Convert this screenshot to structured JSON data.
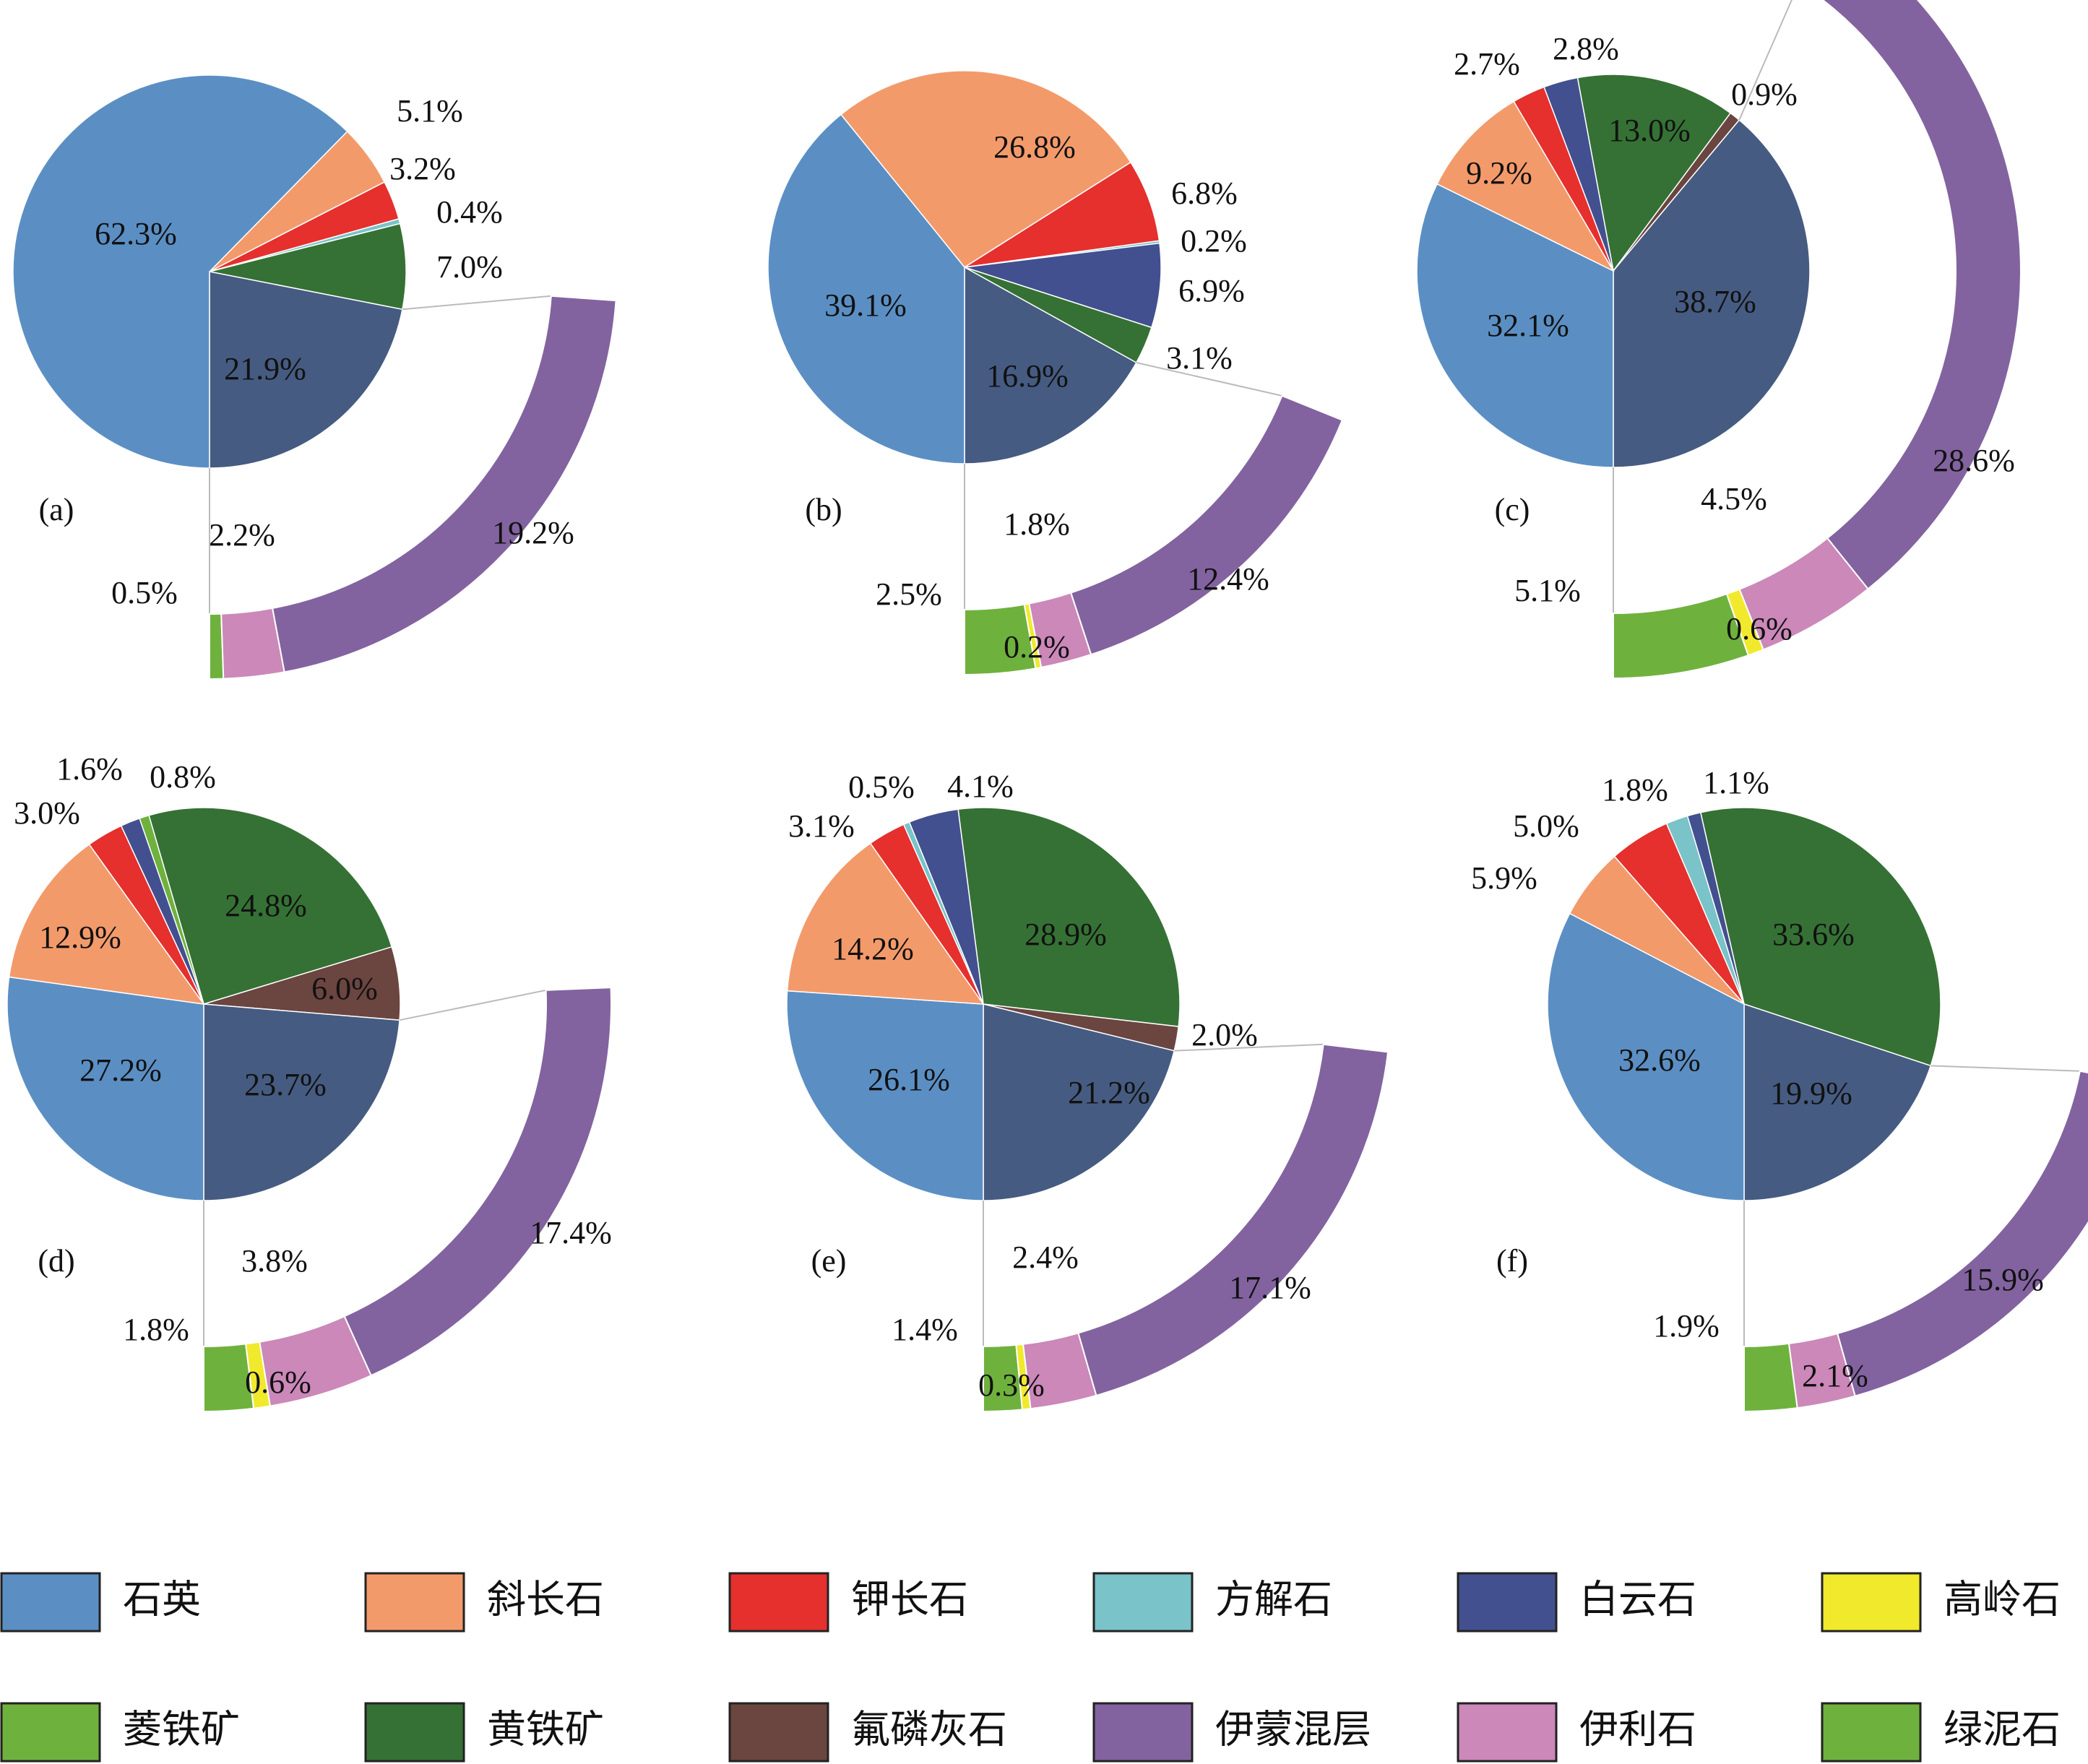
{
  "colors": {
    "石英": "#5b8fc4",
    "斜长石": "#f39a6b",
    "钾长石": "#e5302e",
    "方解石": "#79c3c9",
    "白云石": "#42508f",
    "高岭石": "#f1e92c",
    "菱铁矿": "#6fb13d",
    "黄铁矿": "#357134",
    "氟磷灰石": "#6b4540",
    "伊蒙混层": "#82639f",
    "伊利石": "#cb88b9",
    "绿泥石": "#6fb13d",
    "黏土矿物": "#465b81"
  },
  "legend": {
    "items": [
      "石英",
      "斜长石",
      "钾长石",
      "方解石",
      "白云石",
      "高岭石",
      "菱铁矿",
      "黄铁矿",
      "氟磷灰石",
      "伊蒙混层",
      "伊利石",
      "绿泥石"
    ]
  },
  "chart_data": [
    {
      "type": "pie",
      "panel_label": "(a)",
      "slices": [
        {
          "name": "斜长石",
          "value": 5.1,
          "label": "5.1%"
        },
        {
          "name": "钾长石",
          "value": 3.2,
          "label": "3.2%"
        },
        {
          "name": "方解石",
          "value": 0.4,
          "label": "0.4%"
        },
        {
          "name": "黄铁矿",
          "value": 7.0,
          "label": "7.0%"
        },
        {
          "name": "黏土矿物",
          "value": 21.9,
          "label": "21.9%"
        },
        {
          "name": "石英",
          "value": 62.3,
          "label": "62.3%"
        }
      ],
      "clay_breakdown": [
        {
          "name": "绿泥石",
          "value": 0.5,
          "label": "0.5%"
        },
        {
          "name": "伊利石",
          "value": 2.2,
          "label": "2.2%"
        },
        {
          "name": "伊蒙混层",
          "value": 19.2,
          "label": "19.2%"
        }
      ]
    },
    {
      "type": "pie",
      "panel_label": "(b)",
      "slices": [
        {
          "name": "斜长石",
          "value": 26.8,
          "label": "26.8%"
        },
        {
          "name": "钾长石",
          "value": 6.8,
          "label": "6.8%"
        },
        {
          "name": "方解石",
          "value": 0.2,
          "label": "0.2%"
        },
        {
          "name": "白云石",
          "value": 6.9,
          "label": "6.9%"
        },
        {
          "name": "黄铁矿",
          "value": 3.1,
          "label": "3.1%"
        },
        {
          "name": "黏土矿物",
          "value": 16.9,
          "label": "16.9%"
        },
        {
          "name": "石英",
          "value": 39.1,
          "label": "39.1%"
        }
      ],
      "clay_breakdown": [
        {
          "name": "绿泥石",
          "value": 2.5,
          "label": "2.5%"
        },
        {
          "name": "高岭石",
          "value": 0.2,
          "label": "0.2%"
        },
        {
          "name": "伊利石",
          "value": 1.8,
          "label": "1.8%"
        },
        {
          "name": "伊蒙混层",
          "value": 12.4,
          "label": "12.4%"
        }
      ]
    },
    {
      "type": "pie",
      "panel_label": "(c)",
      "slices": [
        {
          "name": "黄铁矿",
          "value": 13.0,
          "label": "13.0%"
        },
        {
          "name": "氟磷灰石",
          "value": 0.9,
          "label": "0.9%"
        },
        {
          "name": "黏土矿物",
          "value": 38.7,
          "label": "38.7%"
        },
        {
          "name": "石英",
          "value": 32.1,
          "label": "32.1%"
        },
        {
          "name": "斜长石",
          "value": 9.2,
          "label": "9.2%"
        },
        {
          "name": "钾长石",
          "value": 2.7,
          "label": "2.7%"
        },
        {
          "name": "白云石",
          "value": 2.8,
          "label": "2.8%"
        }
      ],
      "clay_breakdown": [
        {
          "name": "绿泥石",
          "value": 5.1,
          "label": "5.1%"
        },
        {
          "name": "高岭石",
          "value": 0.6,
          "label": "0.6%"
        },
        {
          "name": "伊利石",
          "value": 4.5,
          "label": "4.5%"
        },
        {
          "name": "伊蒙混层",
          "value": 28.6,
          "label": "28.6%"
        }
      ]
    },
    {
      "type": "pie",
      "panel_label": "(d)",
      "slices": [
        {
          "name": "黄铁矿",
          "value": 24.8,
          "label": "24.8%"
        },
        {
          "name": "氟磷灰石",
          "value": 6.0,
          "label": "6.0%"
        },
        {
          "name": "黏土矿物",
          "value": 23.7,
          "label": "23.7%"
        },
        {
          "name": "石英",
          "value": 27.2,
          "label": "27.2%"
        },
        {
          "name": "斜长石",
          "value": 12.9,
          "label": "12.9%"
        },
        {
          "name": "钾长石",
          "value": 3.0,
          "label": "3.0%"
        },
        {
          "name": "白云石",
          "value": 1.6,
          "label": "1.6%"
        },
        {
          "name": "菱铁矿",
          "value": 0.8,
          "label": "0.8%"
        }
      ],
      "clay_breakdown": [
        {
          "name": "绿泥石",
          "value": 1.8,
          "label": "1.8%"
        },
        {
          "name": "高岭石",
          "value": 0.6,
          "label": "0.6%"
        },
        {
          "name": "伊利石",
          "value": 3.8,
          "label": "3.8%"
        },
        {
          "name": "伊蒙混层",
          "value": 17.4,
          "label": "17.4%"
        }
      ]
    },
    {
      "type": "pie",
      "panel_label": "(e)",
      "slices": [
        {
          "name": "黄铁矿",
          "value": 28.9,
          "label": "28.9%"
        },
        {
          "name": "氟磷灰石",
          "value": 2.0,
          "label": "2.0%"
        },
        {
          "name": "黏土矿物",
          "value": 21.2,
          "label": "21.2%"
        },
        {
          "name": "石英",
          "value": 26.1,
          "label": "26.1%"
        },
        {
          "name": "斜长石",
          "value": 14.2,
          "label": "14.2%"
        },
        {
          "name": "钾长石",
          "value": 3.1,
          "label": "3.1%"
        },
        {
          "name": "方解石",
          "value": 0.5,
          "label": "0.5%"
        },
        {
          "name": "白云石",
          "value": 4.1,
          "label": "4.1%"
        }
      ],
      "clay_breakdown": [
        {
          "name": "绿泥石",
          "value": 1.4,
          "label": "1.4%"
        },
        {
          "name": "高岭石",
          "value": 0.3,
          "label": "0.3%"
        },
        {
          "name": "伊利石",
          "value": 2.4,
          "label": "2.4%"
        },
        {
          "name": "伊蒙混层",
          "value": 17.1,
          "label": "17.1%"
        }
      ]
    },
    {
      "type": "pie",
      "panel_label": "(f)",
      "slices": [
        {
          "name": "黄铁矿",
          "value": 33.6,
          "label": "33.6%"
        },
        {
          "name": "黏土矿物",
          "value": 19.9,
          "label": "19.9%"
        },
        {
          "name": "石英",
          "value": 32.6,
          "label": "32.6%"
        },
        {
          "name": "斜长石",
          "value": 5.9,
          "label": "5.9%"
        },
        {
          "name": "钾长石",
          "value": 5.0,
          "label": "5.0%"
        },
        {
          "name": "方解石",
          "value": 1.8,
          "label": "1.8%"
        },
        {
          "name": "白云石",
          "value": 1.1,
          "label": "1.1%"
        }
      ],
      "clay_breakdown": [
        {
          "name": "绿泥石",
          "value": 1.9,
          "label": "1.9%"
        },
        {
          "name": "伊利石",
          "value": 2.1,
          "label": "2.1%"
        },
        {
          "name": "伊蒙混层",
          "value": 15.9,
          "label": "15.9%"
        }
      ]
    }
  ]
}
